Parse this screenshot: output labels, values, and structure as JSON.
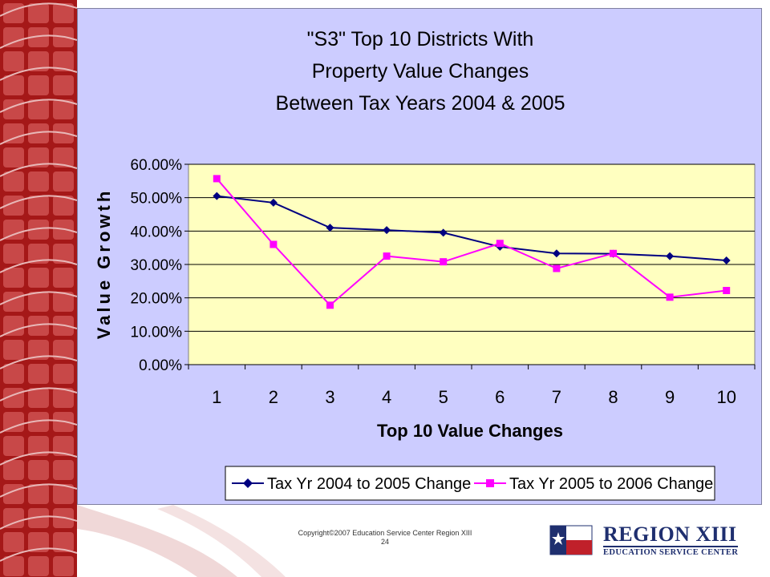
{
  "chart_data": {
    "type": "line",
    "title_lines": [
      "\"S3\" Top 10 Districts With",
      "Property Value Changes",
      "Between Tax Years 2004 & 2005"
    ],
    "xlabel": "Top 10 Value Changes",
    "ylabel": "Value Growth",
    "categories": [
      "1",
      "2",
      "3",
      "4",
      "5",
      "6",
      "7",
      "8",
      "9",
      "10"
    ],
    "y_ticks": [
      "0.00%",
      "10.00%",
      "20.00%",
      "30.00%",
      "40.00%",
      "50.00%",
      "60.00%"
    ],
    "ylim": [
      0,
      60
    ],
    "grid": "horizontal",
    "legend_position": "bottom",
    "series": [
      {
        "name": "Tax Yr 2004 to 2005 Change",
        "color": "#000080",
        "marker": "diamond",
        "values": [
          50.5,
          48.5,
          41.0,
          40.3,
          39.5,
          35.3,
          33.3,
          33.2,
          32.5,
          31.2
        ]
      },
      {
        "name": "Tax Yr 2005 to 2006 Change",
        "color": "#ff00ff",
        "marker": "square",
        "values": [
          55.7,
          36.0,
          17.8,
          32.5,
          30.8,
          36.3,
          28.8,
          33.3,
          20.2,
          22.2
        ]
      }
    ],
    "plot_bg": "#ffffc0",
    "panel_bg": "#ccccff"
  },
  "footer": {
    "copyright": "Copyright©2007 Education Service Center Region XIII",
    "page_number": "24"
  },
  "logo": {
    "name": "REGION XIII",
    "subtitle": "EDUCATION SERVICE CENTER"
  },
  "colors": {
    "side_band": "#b01c1c",
    "tile": "#c84848"
  }
}
